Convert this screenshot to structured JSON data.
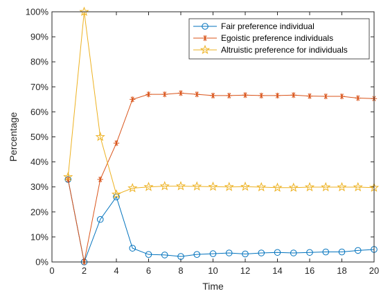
{
  "chart_data": {
    "type": "line",
    "title": "",
    "xlabel": "Time",
    "ylabel": "Percentage",
    "xlim": [
      0,
      20
    ],
    "ylim": [
      0,
      100
    ],
    "x_ticks": [
      0,
      2,
      4,
      6,
      8,
      10,
      12,
      14,
      16,
      18,
      20
    ],
    "y_ticks": [
      "0%",
      "10%",
      "20%",
      "30%",
      "40%",
      "50%",
      "60%",
      "70%",
      "80%",
      "90%",
      "100%"
    ],
    "grid": false,
    "legend_position": "top-right",
    "x": [
      1,
      2,
      3,
      4,
      5,
      6,
      7,
      8,
      9,
      10,
      11,
      12,
      13,
      14,
      15,
      16,
      17,
      18,
      19,
      20
    ],
    "series": [
      {
        "name": "Fair preference individual",
        "color": "#0072BD",
        "marker": "circle",
        "values": [
          33,
          0,
          17,
          26,
          5.5,
          3,
          2.8,
          2.2,
          3,
          3.3,
          3.6,
          3.2,
          3.6,
          3.8,
          3.6,
          3.8,
          4,
          4,
          4.6,
          5
        ]
      },
      {
        "name": "Egoistic preference individuals",
        "color": "#D95319",
        "marker": "asterisk",
        "values": [
          33,
          0,
          33,
          47.5,
          65,
          67,
          67,
          67.5,
          67,
          66.5,
          66.5,
          66.7,
          66.5,
          66.5,
          66.7,
          66.3,
          66.2,
          66.2,
          65.5,
          65.3
        ]
      },
      {
        "name": "Altruistic preference for individuals",
        "color": "#EDB120",
        "marker": "pentagram",
        "values": [
          34,
          100,
          50,
          27,
          29.5,
          30,
          30.3,
          30.3,
          30.2,
          30.1,
          30,
          30.1,
          29.9,
          29.7,
          29.7,
          29.9,
          29.9,
          29.9,
          29.9,
          29.7
        ]
      }
    ]
  }
}
